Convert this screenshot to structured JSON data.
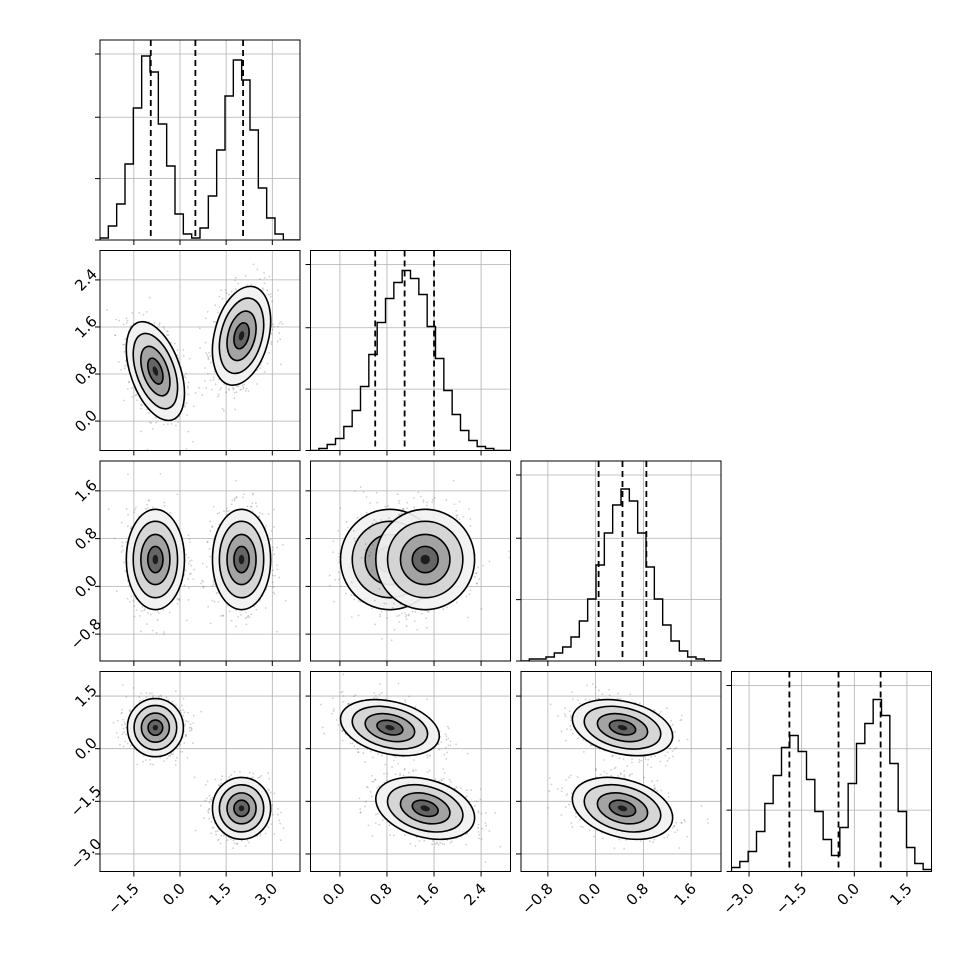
{
  "chart_data": {
    "type": "corner",
    "n_parameters": 4,
    "grid": true,
    "quantile_lines": "dashed",
    "parameters": [
      {
        "range": [
          -2.6,
          3.9
        ],
        "ticks": [
          -1.5,
          0.0,
          1.5,
          3.0
        ],
        "tick_labels": [
          "−1.5",
          "0.0",
          "1.5",
          "3.0"
        ],
        "quantiles": [
          -0.95,
          0.5,
          2.05
        ],
        "hist": [
          0.01,
          0.07,
          0.18,
          0.38,
          0.66,
          0.92,
          0.84,
          0.58,
          0.37,
          0.13,
          0.03,
          0.01,
          0.06,
          0.22,
          0.45,
          0.72,
          0.9,
          0.8,
          0.55,
          0.26,
          0.11,
          0.03,
          0.0,
          0.0
        ]
      },
      {
        "range": [
          -0.5,
          2.9
        ],
        "ticks": [
          0.0,
          0.8,
          1.6,
          2.4
        ],
        "tick_labels": [
          "0.0",
          "0.8",
          "1.6",
          "2.4"
        ],
        "quantiles": [
          0.6,
          1.1,
          1.6
        ],
        "hist": [
          0.0,
          0.01,
          0.03,
          0.06,
          0.12,
          0.2,
          0.32,
          0.48,
          0.64,
          0.76,
          0.84,
          0.9,
          0.86,
          0.78,
          0.62,
          0.46,
          0.3,
          0.18,
          0.1,
          0.05,
          0.02,
          0.01,
          0.0,
          0.0
        ]
      },
      {
        "range": [
          -1.25,
          2.1
        ],
        "ticks": [
          -0.8,
          0.0,
          0.8,
          1.6
        ],
        "tick_labels": [
          "−0.8",
          "0.0",
          "0.8",
          "1.6"
        ],
        "quantiles": [
          0.05,
          0.45,
          0.85
        ],
        "hist": [
          0.0,
          0.01,
          0.01,
          0.02,
          0.04,
          0.07,
          0.12,
          0.2,
          0.31,
          0.48,
          0.64,
          0.78,
          0.86,
          0.8,
          0.64,
          0.47,
          0.31,
          0.18,
          0.1,
          0.05,
          0.02,
          0.01,
          0.0,
          0.0
        ]
      },
      {
        "range": [
          -3.5,
          2.2
        ],
        "ticks": [
          -3.0,
          -1.5,
          0.0,
          1.5
        ],
        "tick_labels": [
          "−3.0",
          "−1.5",
          "0.0",
          "1.5"
        ],
        "quantiles": [
          -1.85,
          -0.45,
          0.75
        ],
        "hist": [
          0.02,
          0.05,
          0.1,
          0.2,
          0.34,
          0.48,
          0.62,
          0.68,
          0.6,
          0.46,
          0.3,
          0.16,
          0.08,
          0.22,
          0.44,
          0.64,
          0.74,
          0.86,
          0.78,
          0.54,
          0.3,
          0.12,
          0.04,
          0.01
        ]
      }
    ],
    "modes": [
      {
        "mean": [
          -0.8,
          0.85,
          0.45,
          0.6
        ],
        "sd": [
          0.45,
          0.4,
          0.4,
          0.38
        ],
        "corr01": -0.45,
        "corr13": -0.3,
        "corr23": -0.3
      },
      {
        "mean": [
          2.0,
          1.45,
          0.45,
          -1.7
        ],
        "sd": [
          0.45,
          0.4,
          0.4,
          0.42
        ],
        "corr01": 0.3,
        "corr13": -0.3,
        "corr23": -0.3
      }
    ]
  }
}
